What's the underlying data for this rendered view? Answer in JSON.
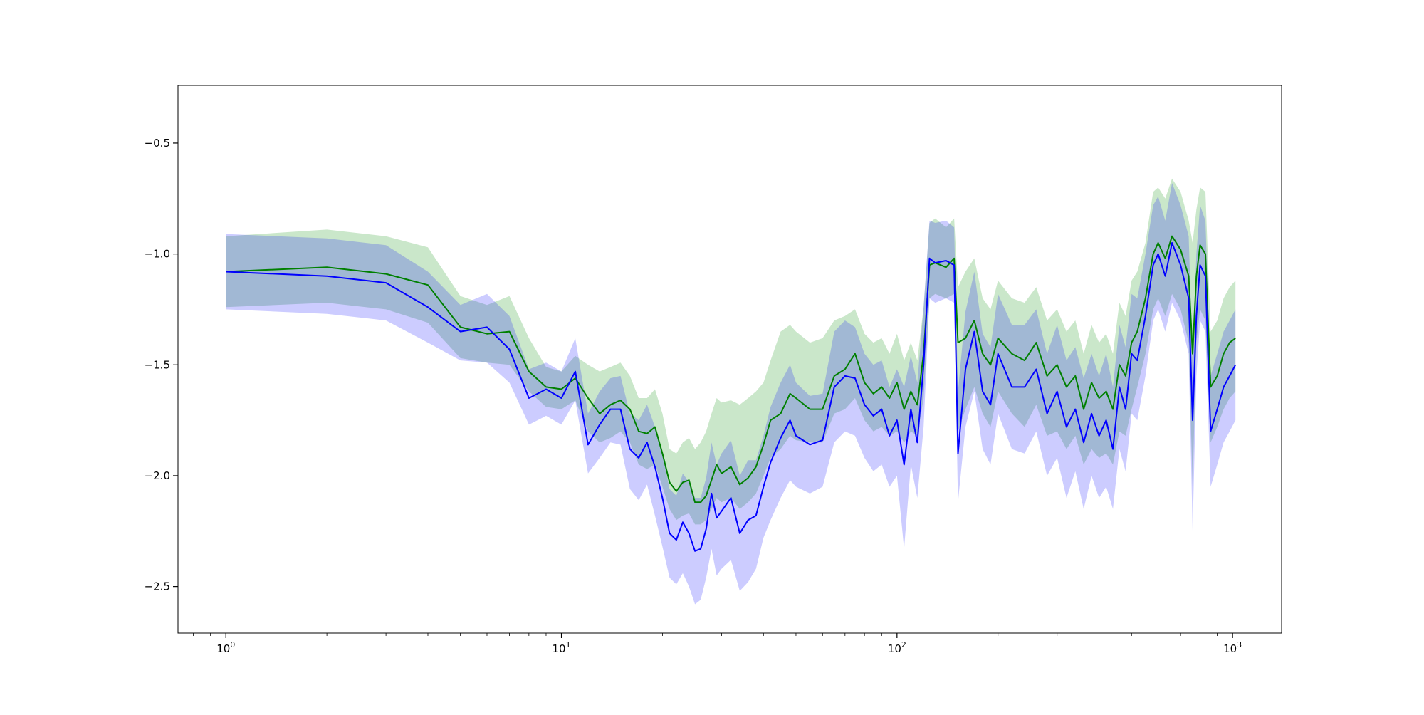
{
  "chart_data": {
    "type": "line",
    "title": "",
    "xlabel": "",
    "ylabel": "",
    "xscale": "log",
    "xlim": [
      0.72,
      1400
    ],
    "ylim": [
      -2.71,
      -0.24
    ],
    "grid": false,
    "legend": "none",
    "x_ticks": [
      {
        "value": 1,
        "base": "10",
        "exp": "0"
      },
      {
        "value": 10,
        "base": "10",
        "exp": "1"
      },
      {
        "value": 100,
        "base": "10",
        "exp": "2"
      },
      {
        "value": 1000,
        "base": "10",
        "exp": "3"
      }
    ],
    "y_ticks": [
      {
        "value": -0.5,
        "label": "−0.5"
      },
      {
        "value": -1.0,
        "label": "−1.0"
      },
      {
        "value": -1.5,
        "label": "−1.5"
      },
      {
        "value": -2.0,
        "label": "−2.0"
      },
      {
        "value": -2.5,
        "label": "−2.5"
      }
    ],
    "series": [
      {
        "color": "#008000",
        "band_color": "#2ca02c",
        "band_opacity": 0.25,
        "x": [
          1,
          2,
          3,
          4,
          5,
          6,
          7,
          8,
          9,
          10,
          11,
          12,
          13,
          14,
          15,
          16,
          17,
          18,
          19,
          20,
          21,
          22,
          23,
          24,
          25,
          26,
          27,
          28,
          29,
          30,
          32,
          34,
          36,
          38,
          40,
          42,
          45,
          48,
          50,
          55,
          60,
          65,
          70,
          75,
          80,
          85,
          90,
          95,
          100,
          105,
          110,
          115,
          120,
          125,
          130,
          140,
          148,
          152,
          160,
          170,
          180,
          190,
          200,
          220,
          240,
          260,
          280,
          300,
          320,
          340,
          360,
          380,
          400,
          420,
          440,
          460,
          480,
          500,
          520,
          550,
          580,
          600,
          630,
          660,
          700,
          740,
          760,
          780,
          800,
          830,
          860,
          900,
          940,
          980,
          1020
        ],
        "values": [
          -1.08,
          -1.06,
          -1.09,
          -1.14,
          -1.33,
          -1.36,
          -1.35,
          -1.53,
          -1.6,
          -1.61,
          -1.56,
          -1.65,
          -1.72,
          -1.68,
          -1.66,
          -1.7,
          -1.8,
          -1.81,
          -1.78,
          -1.9,
          -2.03,
          -2.07,
          -2.03,
          -2.02,
          -2.12,
          -2.12,
          -2.09,
          -2.02,
          -1.95,
          -1.99,
          -1.96,
          -2.04,
          -2.01,
          -1.96,
          -1.86,
          -1.75,
          -1.72,
          -1.63,
          -1.65,
          -1.7,
          -1.7,
          -1.55,
          -1.52,
          -1.45,
          -1.58,
          -1.63,
          -1.6,
          -1.65,
          -1.58,
          -1.7,
          -1.62,
          -1.68,
          -1.45,
          -1.05,
          -1.04,
          -1.06,
          -1.02,
          -1.4,
          -1.38,
          -1.3,
          -1.45,
          -1.5,
          -1.38,
          -1.45,
          -1.48,
          -1.4,
          -1.55,
          -1.5,
          -1.6,
          -1.55,
          -1.7,
          -1.58,
          -1.65,
          -1.62,
          -1.7,
          -1.5,
          -1.55,
          -1.4,
          -1.35,
          -1.2,
          -1.0,
          -0.95,
          -1.02,
          -0.92,
          -0.98,
          -1.1,
          -1.45,
          -1.1,
          -0.96,
          -1.0,
          -1.6,
          -1.55,
          -1.45,
          -1.4,
          -1.38
        ],
        "lower": [
          -1.24,
          -1.22,
          -1.25,
          -1.31,
          -1.47,
          -1.49,
          -1.5,
          -1.62,
          -1.69,
          -1.7,
          -1.66,
          -1.8,
          -1.85,
          -1.83,
          -1.8,
          -1.85,
          -1.95,
          -1.97,
          -1.95,
          -2.05,
          -2.15,
          -2.2,
          -2.18,
          -2.17,
          -2.22,
          -2.22,
          -2.2,
          -2.15,
          -2.1,
          -2.12,
          -2.1,
          -2.15,
          -2.12,
          -2.08,
          -2.0,
          -1.92,
          -1.88,
          -1.82,
          -1.84,
          -1.85,
          -1.85,
          -1.72,
          -1.7,
          -1.65,
          -1.75,
          -1.8,
          -1.78,
          -1.82,
          -1.8,
          -1.85,
          -1.8,
          -1.82,
          -1.65,
          -1.2,
          -1.18,
          -1.2,
          -1.18,
          -1.8,
          -1.7,
          -1.6,
          -1.72,
          -1.78,
          -1.62,
          -1.72,
          -1.78,
          -1.68,
          -1.82,
          -1.8,
          -1.88,
          -1.82,
          -1.95,
          -1.88,
          -1.92,
          -1.9,
          -1.95,
          -1.8,
          -1.82,
          -1.7,
          -1.6,
          -1.45,
          -1.25,
          -1.2,
          -1.28,
          -1.18,
          -1.25,
          -1.4,
          -2.05,
          -1.4,
          -1.25,
          -1.3,
          -1.85,
          -1.78,
          -1.7,
          -1.65,
          -1.62
        ],
        "upper": [
          -0.92,
          -0.89,
          -0.92,
          -0.97,
          -1.19,
          -1.23,
          -1.19,
          -1.38,
          -1.51,
          -1.53,
          -1.46,
          -1.5,
          -1.53,
          -1.51,
          -1.49,
          -1.55,
          -1.65,
          -1.65,
          -1.61,
          -1.72,
          -1.88,
          -1.9,
          -1.85,
          -1.83,
          -1.88,
          -1.85,
          -1.8,
          -1.72,
          -1.65,
          -1.67,
          -1.66,
          -1.68,
          -1.65,
          -1.62,
          -1.58,
          -1.48,
          -1.35,
          -1.32,
          -1.35,
          -1.4,
          -1.38,
          -1.3,
          -1.28,
          -1.25,
          -1.36,
          -1.4,
          -1.38,
          -1.45,
          -1.36,
          -1.48,
          -1.4,
          -1.48,
          -1.24,
          -0.86,
          -0.84,
          -0.88,
          -0.84,
          -1.15,
          -1.08,
          -1.02,
          -1.2,
          -1.25,
          -1.12,
          -1.2,
          -1.22,
          -1.15,
          -1.3,
          -1.25,
          -1.35,
          -1.3,
          -1.45,
          -1.32,
          -1.4,
          -1.36,
          -1.45,
          -1.22,
          -1.28,
          -1.12,
          -1.08,
          -0.95,
          -0.72,
          -0.7,
          -0.75,
          -0.66,
          -0.72,
          -0.85,
          -0.95,
          -0.8,
          -0.7,
          -0.72,
          -1.35,
          -1.3,
          -1.2,
          -1.15,
          -1.12
        ]
      },
      {
        "color": "#0000ff",
        "band_color": "#0000ff",
        "band_opacity": 0.2,
        "x": [
          1,
          2,
          3,
          4,
          5,
          6,
          7,
          8,
          9,
          10,
          11,
          12,
          13,
          14,
          15,
          16,
          17,
          18,
          19,
          20,
          21,
          22,
          23,
          24,
          25,
          26,
          27,
          28,
          29,
          30,
          32,
          34,
          36,
          38,
          40,
          42,
          45,
          48,
          50,
          55,
          60,
          65,
          70,
          75,
          80,
          85,
          90,
          95,
          100,
          105,
          110,
          115,
          120,
          125,
          130,
          140,
          148,
          152,
          160,
          170,
          180,
          190,
          200,
          220,
          240,
          260,
          280,
          300,
          320,
          340,
          360,
          380,
          400,
          420,
          440,
          460,
          480,
          500,
          520,
          550,
          580,
          600,
          630,
          660,
          700,
          740,
          760,
          780,
          800,
          830,
          860,
          900,
          940,
          980,
          1020
        ],
        "values": [
          -1.08,
          -1.1,
          -1.13,
          -1.24,
          -1.35,
          -1.33,
          -1.43,
          -1.65,
          -1.61,
          -1.65,
          -1.53,
          -1.86,
          -1.77,
          -1.7,
          -1.7,
          -1.88,
          -1.92,
          -1.85,
          -1.96,
          -2.1,
          -2.26,
          -2.29,
          -2.21,
          -2.26,
          -2.34,
          -2.33,
          -2.24,
          -2.08,
          -2.19,
          -2.16,
          -2.1,
          -2.26,
          -2.2,
          -2.18,
          -2.05,
          -1.94,
          -1.83,
          -1.75,
          -1.82,
          -1.86,
          -1.84,
          -1.6,
          -1.55,
          -1.56,
          -1.68,
          -1.73,
          -1.7,
          -1.82,
          -1.75,
          -1.95,
          -1.7,
          -1.85,
          -1.5,
          -1.02,
          -1.04,
          -1.03,
          -1.05,
          -1.9,
          -1.52,
          -1.35,
          -1.62,
          -1.68,
          -1.45,
          -1.6,
          -1.6,
          -1.52,
          -1.72,
          -1.62,
          -1.78,
          -1.7,
          -1.85,
          -1.72,
          -1.82,
          -1.75,
          -1.88,
          -1.6,
          -1.7,
          -1.45,
          -1.48,
          -1.28,
          -1.05,
          -1.0,
          -1.1,
          -0.95,
          -1.05,
          -1.2,
          -1.75,
          -1.28,
          -1.05,
          -1.1,
          -1.8,
          -1.7,
          -1.6,
          -1.55,
          -1.5
        ],
        "lower": [
          -1.25,
          -1.27,
          -1.3,
          -1.4,
          -1.48,
          -1.49,
          -1.58,
          -1.77,
          -1.73,
          -1.77,
          -1.66,
          -1.99,
          -1.92,
          -1.85,
          -1.86,
          -2.06,
          -2.11,
          -2.04,
          -2.18,
          -2.32,
          -2.46,
          -2.49,
          -2.44,
          -2.5,
          -2.58,
          -2.56,
          -2.46,
          -2.33,
          -2.45,
          -2.42,
          -2.38,
          -2.52,
          -2.48,
          -2.42,
          -2.28,
          -2.2,
          -2.1,
          -2.02,
          -2.05,
          -2.08,
          -2.05,
          -1.85,
          -1.8,
          -1.82,
          -1.92,
          -1.98,
          -1.95,
          -2.05,
          -2.0,
          -2.33,
          -1.95,
          -2.1,
          -1.78,
          -1.2,
          -1.22,
          -1.2,
          -1.22,
          -2.12,
          -1.78,
          -1.62,
          -1.88,
          -1.95,
          -1.72,
          -1.88,
          -1.9,
          -1.8,
          -2.0,
          -1.92,
          -2.1,
          -1.98,
          -2.15,
          -2.0,
          -2.1,
          -2.05,
          -2.15,
          -1.88,
          -1.98,
          -1.72,
          -1.75,
          -1.55,
          -1.3,
          -1.25,
          -1.35,
          -1.22,
          -1.3,
          -1.45,
          -2.25,
          -1.55,
          -1.3,
          -1.35,
          -2.05,
          -1.95,
          -1.85,
          -1.8,
          -1.75
        ],
        "upper": [
          -0.91,
          -0.93,
          -0.96,
          -1.08,
          -1.23,
          -1.18,
          -1.28,
          -1.52,
          -1.49,
          -1.53,
          -1.38,
          -1.72,
          -1.62,
          -1.56,
          -1.55,
          -1.72,
          -1.75,
          -1.68,
          -1.78,
          -1.9,
          -2.06,
          -2.09,
          -1.99,
          -2.03,
          -2.1,
          -2.1,
          -2.01,
          -1.85,
          -1.95,
          -1.9,
          -1.84,
          -2.0,
          -1.93,
          -1.93,
          -1.82,
          -1.69,
          -1.58,
          -1.5,
          -1.58,
          -1.64,
          -1.63,
          -1.35,
          -1.3,
          -1.33,
          -1.45,
          -1.5,
          -1.48,
          -1.6,
          -1.52,
          -1.6,
          -1.46,
          -1.58,
          -1.24,
          -0.85,
          -0.86,
          -0.85,
          -0.88,
          -1.62,
          -1.26,
          -1.08,
          -1.36,
          -1.42,
          -1.18,
          -1.32,
          -1.32,
          -1.25,
          -1.45,
          -1.32,
          -1.48,
          -1.42,
          -1.56,
          -1.45,
          -1.55,
          -1.45,
          -1.6,
          -1.32,
          -1.42,
          -1.18,
          -1.2,
          -1.0,
          -0.78,
          -0.74,
          -0.85,
          -0.68,
          -0.78,
          -0.92,
          -1.48,
          -1.0,
          -0.78,
          -0.85,
          -1.55,
          -1.45,
          -1.35,
          -1.3,
          -1.25
        ]
      }
    ]
  }
}
